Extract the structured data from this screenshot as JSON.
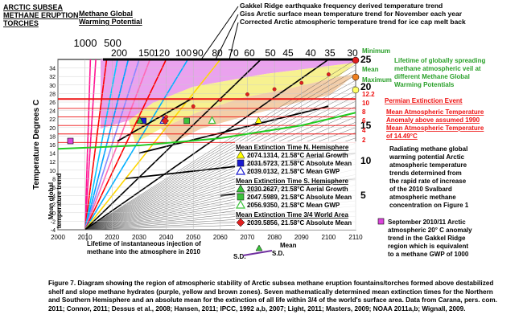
{
  "chart_data": {
    "type": "line",
    "title": "",
    "xlabel": "",
    "ylabel": "Temperature Degrees C",
    "xlim": [
      2000,
      2110
    ],
    "ylim": [
      -4,
      36
    ],
    "x_ticks": [
      "2000",
      "2010",
      "2020",
      "2030",
      "2040",
      "2050",
      "2060",
      "2070",
      "2080",
      "2090",
      "2100",
      "2110"
    ],
    "y_ticks": [
      "-4",
      "-2",
      "0",
      "2",
      "4",
      "6",
      "8",
      "10",
      "12",
      "14",
      "16",
      "18",
      "20",
      "22",
      "24",
      "26",
      "28",
      "30",
      "32",
      "34"
    ],
    "top_scale_values": [
      "1000",
      "500",
      "200",
      "150",
      "120",
      "100",
      "90",
      "80",
      "70",
      "60",
      "50",
      "45",
      "40",
      "35",
      "30"
    ],
    "top_scale_label": "Methane Global Warming Potential",
    "right_axis_ticks": [
      "25",
      "20",
      "15",
      "10",
      "5"
    ],
    "red_level_labels": [
      "12.2",
      "10",
      "8",
      "6",
      "4",
      "2"
    ],
    "header_labels": {
      "torches": "ARCTIC SUBSEA METHANE ERUPTION TORCHES",
      "gakkel": "Gakkel Ridge earthquake frequency derived temperature trend",
      "giss": "Giss Arctic surface mean temperature trend for November each year",
      "corrected": "Corrected Arctic atmospheric temperature trend for ice cap melt back"
    },
    "right_annotations": {
      "minimum": "Minimum",
      "mean": "Mean",
      "maximum": "Maximum",
      "lifetime": "Lifetime of globally spreading methane atmospheric veil at different Methane Global Warming Potentials",
      "permian": "Permian Extinction Event",
      "anomaly": "Mean Atmospheric Temperature Anomaly above assumed 1990",
      "mean_temp": "Mean Atmospheric Temperature of 14.49°C",
      "radiating": "Radiating methane global warming potential Arctic atmospheric temperature trends determined from the rapid rate of increase of the 2010 Svalbard atmospheric methane concentration on Figure 1",
      "september": "September 2010/11 Arctic atmospheric 20° C anomaly trend in the Gakkel Ridge region which is equivalent to a methane GWP of 1000"
    },
    "left_annotation": "Mean global temperature trend",
    "bottom_annotation": "Lifetime of instantaneous injection of methane into the atmosphere in 2010",
    "sd_labels": {
      "sd_left": "S.D.",
      "mean": "Mean",
      "sd_right": "S.D."
    },
    "legend": {
      "nh_title": "Mean Extinction Time N. Hemisphere",
      "nh": [
        {
          "color": "#ffff00",
          "shape": "triangle",
          "text": "2074.1314, 21.58°C Aerial Growth"
        },
        {
          "color": "#1a1ad0",
          "shape": "square",
          "text": "2031.5723, 21.58°C Absolute Mean"
        },
        {
          "color": "#1a1ad0",
          "shape": "triangle-open",
          "text": "2039.0132, 21.58°C Mean GWP"
        }
      ],
      "sh_title": "Mean Extinction Time S. Hemisphere",
      "sh": [
        {
          "color": "#3cc23c",
          "shape": "triangle",
          "text": "2030.2627, 21.58°C Aerial Growth"
        },
        {
          "color": "#3cc23c",
          "shape": "square",
          "text": "2047.5989, 21.58°C Absolute Mean"
        },
        {
          "color": "#3cc23c",
          "shape": "triangle-open",
          "text": "2056.9350, 21.58°C Mean GWP"
        }
      ],
      "world_title": "Mean Extinction Time 3/4 World Area",
      "world": [
        {
          "color": "#e02020",
          "shape": "diamond",
          "text": "2039.5856, 21.58°C Absolute Mean"
        }
      ]
    },
    "series": [
      {
        "name": "Mean global temperature trend",
        "color": "#22cc22",
        "x": [
          2000,
          2030,
          2060,
          2090,
          2110
        ],
        "y": [
          15,
          15.8,
          17.5,
          20.5,
          23.5
        ]
      },
      {
        "name": "Permian Extinction Event",
        "color": "#ee1111",
        "x": [
          2000,
          2110
        ],
        "y": [
          26.7,
          26.7
        ]
      }
    ],
    "level_lines_y": [
      26.7,
      24.5,
      22.5,
      20.5,
      18.5,
      16.5
    ]
  },
  "caption": {
    "text": "Figure 7.  Diagram showing the region of atmospheric stability of Arctic subsea methane eruption fountains/torches formed above destabilized shelf and slope methane hydrates (purple, yellow and brown zones). Seven mathematically determined mean extinction times for the Northern and Southern Hemisphere and an absolute mean for the extinction of all life within 3/4 of the world's surface area. Data from Carana, pers. com.  2011; Connor, 2011; Dessus et al., 2008; Hansen, 2011; IPCC, 1992 a,b, 2007; Light, 2011; Masters, 2009; NOAA 2011a,b; Wignall, 2009."
  }
}
